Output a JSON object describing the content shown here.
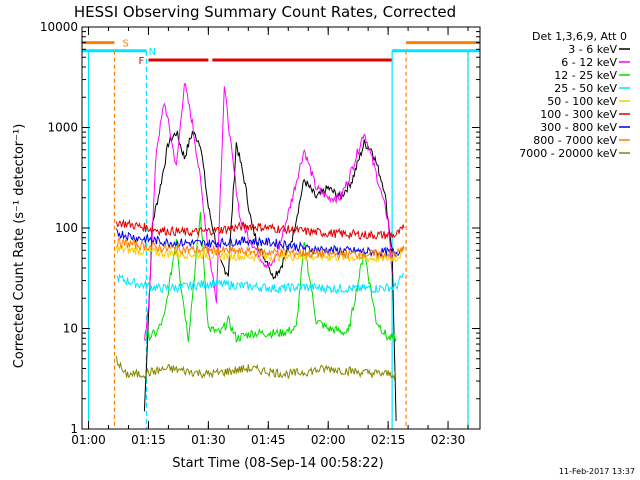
{
  "chart_data": {
    "type": "line",
    "title": "HESSI Observing Summary Count Rates, Corrected",
    "xlabel": "Start Time (08-Sep-14 00:58:22)",
    "ylabel": "Corrected Count Rate (s⁻¹ detector⁻¹)",
    "yscale": "log",
    "ylim": [
      1,
      10000
    ],
    "xlim": [
      "00:58:22",
      "02:38:00"
    ],
    "x_ticks": [
      "01:00",
      "01:15",
      "01:30",
      "01:45",
      "02:00",
      "02:15",
      "02:30"
    ],
    "y_ticks": [
      "1",
      "10",
      "100",
      "1000",
      "10000"
    ],
    "legend_title": "Det 1,3,6,9, Att 0",
    "legend_position": "right",
    "footer": "11-Feb-2017 13:37",
    "flags": [
      {
        "label": "S",
        "color": "#ff7f00",
        "y": 7000
      },
      {
        "label": "N",
        "color": "#00e5ff",
        "y": 5800
      },
      {
        "label": "F",
        "color": "#e00000",
        "y": 4700
      }
    ],
    "series": [
      {
        "name": "3 - 6 keV",
        "color": "#000000",
        "points": [
          [
            "01:14",
            1.5
          ],
          [
            "01:16",
            110
          ],
          [
            "01:18",
            260
          ],
          [
            "01:20",
            700
          ],
          [
            "01:22",
            900
          ],
          [
            "01:24",
            500
          ],
          [
            "01:26",
            900
          ],
          [
            "01:28",
            700
          ],
          [
            "01:30",
            160
          ],
          [
            "01:33",
            45
          ],
          [
            "01:35",
            35
          ],
          [
            "01:37",
            700
          ],
          [
            "01:39",
            300
          ],
          [
            "01:41",
            100
          ],
          [
            "01:43",
            60
          ],
          [
            "01:45",
            45
          ],
          [
            "01:46",
            33
          ],
          [
            "01:48",
            40
          ],
          [
            "01:51",
            80
          ],
          [
            "01:54",
            300
          ],
          [
            "01:57",
            200
          ],
          [
            "02:00",
            250
          ],
          [
            "02:03",
            200
          ],
          [
            "02:06",
            300
          ],
          [
            "02:09",
            700
          ],
          [
            "02:11",
            600
          ],
          [
            "02:14",
            250
          ],
          [
            "02:16",
            60
          ],
          [
            "02:17",
            1.2
          ]
        ]
      },
      {
        "name": "6 - 12 keV",
        "color": "#ff00ff",
        "points": [
          [
            "01:14",
            7
          ],
          [
            "01:15",
            15
          ],
          [
            "01:17",
            600
          ],
          [
            "01:19",
            1800
          ],
          [
            "01:20",
            1100
          ],
          [
            "01:22",
            400
          ],
          [
            "01:24",
            2800
          ],
          [
            "01:26",
            1100
          ],
          [
            "01:28",
            300
          ],
          [
            "01:30",
            60
          ],
          [
            "01:32",
            20
          ],
          [
            "01:34",
            2600
          ],
          [
            "01:36",
            500
          ],
          [
            "01:38",
            120
          ],
          [
            "01:41",
            70
          ],
          [
            "01:44",
            45
          ],
          [
            "01:46",
            42
          ],
          [
            "01:48",
            70
          ],
          [
            "01:51",
            200
          ],
          [
            "01:54",
            600
          ],
          [
            "01:57",
            250
          ],
          [
            "02:00",
            200
          ],
          [
            "02:03",
            200
          ],
          [
            "02:05",
            300
          ],
          [
            "02:09",
            900
          ],
          [
            "02:12",
            350
          ],
          [
            "02:15",
            120
          ],
          [
            "02:16",
            35
          ]
        ]
      },
      {
        "name": "12 - 25 keV",
        "color": "#00dd00",
        "points": [
          [
            "01:14",
            8
          ],
          [
            "01:17",
            9
          ],
          [
            "01:19",
            13
          ],
          [
            "01:22",
            80
          ],
          [
            "01:23",
            30
          ],
          [
            "01:25",
            8
          ],
          [
            "01:28",
            140
          ],
          [
            "01:30",
            10
          ],
          [
            "01:33",
            9
          ],
          [
            "01:35",
            12
          ],
          [
            "01:37",
            8
          ],
          [
            "01:41",
            9
          ],
          [
            "01:45",
            9
          ],
          [
            "01:48",
            9
          ],
          [
            "01:52",
            10
          ],
          [
            "01:54",
            70
          ],
          [
            "01:57",
            12
          ],
          [
            "02:00",
            10
          ],
          [
            "02:05",
            9
          ],
          [
            "02:09",
            60
          ],
          [
            "02:12",
            12
          ],
          [
            "02:15",
            8
          ],
          [
            "02:17",
            8
          ]
        ]
      },
      {
        "name": "25 - 50 keV",
        "color": "#00e5ff",
        "points": [
          [
            "01:07",
            32
          ],
          [
            "01:12",
            28
          ],
          [
            "01:18",
            25
          ],
          [
            "01:24",
            26
          ],
          [
            "01:30",
            28
          ],
          [
            "01:36",
            27
          ],
          [
            "01:42",
            26
          ],
          [
            "01:48",
            25
          ],
          [
            "01:54",
            26
          ],
          [
            "02:00",
            25
          ],
          [
            "02:06",
            25
          ],
          [
            "02:12",
            25
          ],
          [
            "02:17",
            26
          ],
          [
            "02:19",
            35
          ]
        ]
      },
      {
        "name": "50 - 100 keV",
        "color": "#ffcc00",
        "points": [
          [
            "01:07",
            62
          ],
          [
            "01:12",
            60
          ],
          [
            "01:20",
            56
          ],
          [
            "01:30",
            54
          ],
          [
            "01:40",
            52
          ],
          [
            "01:50",
            52
          ],
          [
            "02:00",
            52
          ],
          [
            "02:10",
            50
          ],
          [
            "02:17",
            50
          ],
          [
            "02:19",
            60
          ]
        ]
      },
      {
        "name": "100 - 300 keV",
        "color": "#e00000",
        "points": [
          [
            "01:07",
            115
          ],
          [
            "01:12",
            105
          ],
          [
            "01:18",
            95
          ],
          [
            "01:25",
            90
          ],
          [
            "01:32",
            95
          ],
          [
            "01:40",
            105
          ],
          [
            "01:48",
            98
          ],
          [
            "01:55",
            92
          ],
          [
            "02:02",
            88
          ],
          [
            "02:10",
            85
          ],
          [
            "02:17",
            85
          ],
          [
            "02:19",
            100
          ]
        ]
      },
      {
        "name": "300 - 800 keV",
        "color": "#0000ee",
        "points": [
          [
            "01:07",
            90
          ],
          [
            "01:12",
            80
          ],
          [
            "01:20",
            72
          ],
          [
            "01:30",
            70
          ],
          [
            "01:40",
            75
          ],
          [
            "01:48",
            70
          ],
          [
            "01:55",
            62
          ],
          [
            "02:02",
            60
          ],
          [
            "02:10",
            58
          ],
          [
            "02:17",
            57
          ],
          [
            "02:19",
            65
          ]
        ]
      },
      {
        "name": "800 - 7000 keV",
        "color": "#ff7f00",
        "points": [
          [
            "01:07",
            72
          ],
          [
            "01:12",
            68
          ],
          [
            "01:20",
            62
          ],
          [
            "01:30",
            60
          ],
          [
            "01:40",
            58
          ],
          [
            "01:50",
            57
          ],
          [
            "02:00",
            55
          ],
          [
            "02:10",
            55
          ],
          [
            "02:17",
            55
          ],
          [
            "02:19",
            62
          ]
        ]
      },
      {
        "name": "7000 - 20000 keV",
        "color": "#888800",
        "points": [
          [
            "01:07",
            5
          ],
          [
            "01:09",
            3.5
          ],
          [
            "01:13",
            3.5
          ],
          [
            "01:20",
            4
          ],
          [
            "01:30",
            3.5
          ],
          [
            "01:40",
            4
          ],
          [
            "01:50",
            3.5
          ],
          [
            "02:00",
            4
          ],
          [
            "02:10",
            3.6
          ],
          [
            "02:17",
            3.5
          ]
        ]
      }
    ]
  }
}
